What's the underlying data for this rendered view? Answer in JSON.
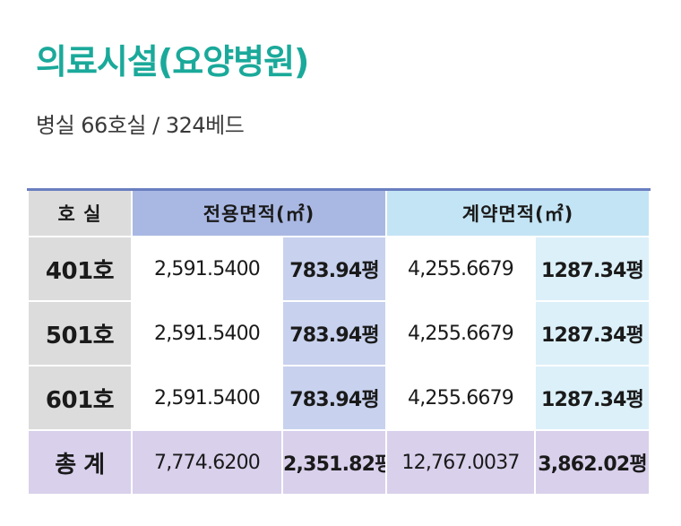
{
  "title": "의료시설(요양병원)",
  "subtitle": "병실 66호실 / 324베드",
  "table": {
    "headers": {
      "room": "호 실",
      "exclusive_area": "전용면적(㎡)",
      "contract_area": "계약면적(㎡)"
    },
    "rows": [
      {
        "room": "401호",
        "exclusive_m2": "2,591.5400",
        "exclusive_pyeong": "783.94평",
        "contract_m2": "4,255.6679",
        "contract_pyeong": "1287.34평"
      },
      {
        "room": "501호",
        "exclusive_m2": "2,591.5400",
        "exclusive_pyeong": "783.94평",
        "contract_m2": "4,255.6679",
        "contract_pyeong": "1287.34평"
      },
      {
        "room": "601호",
        "exclusive_m2": "2,591.5400",
        "exclusive_pyeong": "783.94평",
        "contract_m2": "4,255.6679",
        "contract_pyeong": "1287.34평"
      }
    ],
    "total": {
      "room": "총 계",
      "exclusive_m2": "7,774.6200",
      "exclusive_pyeong": "2,351.82평",
      "contract_m2": "12,767.0037",
      "contract_pyeong": "3,862.02평"
    }
  },
  "colors": {
    "title": "#1aa99a",
    "header_room": "#dcdcdc",
    "header_exclusive": "#a9b8e3",
    "header_contract": "#c3e4f4",
    "total_row": "#d9d0ec"
  }
}
